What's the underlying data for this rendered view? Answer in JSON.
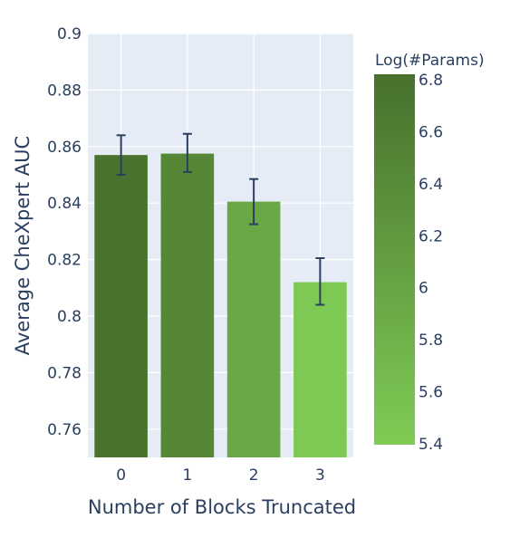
{
  "chart_data": {
    "type": "bar",
    "categories": [
      "0",
      "1",
      "2",
      "3"
    ],
    "values": [
      0.857,
      0.8575,
      0.8405,
      0.812
    ],
    "error_upper": [
      0.864,
      0.8645,
      0.8485,
      0.8205
    ],
    "error_lower": [
      0.85,
      0.851,
      0.8325,
      0.804
    ],
    "color_values": [
      6.75,
      6.45,
      5.95,
      5.45
    ],
    "xlabel": "Number of Blocks Truncated",
    "ylabel": "Average CheXpert AUC",
    "ylim": [
      0.75,
      0.9
    ],
    "y_ticks": [
      "0.9",
      "0.88",
      "0.86",
      "0.84",
      "0.82",
      "0.8",
      "0.78",
      "0.76"
    ],
    "x_ticks": [
      "0",
      "1",
      "2",
      "3"
    ],
    "grid": true,
    "colorbar": {
      "title": "Log(#Params)",
      "range": [
        5.4,
        6.8
      ],
      "ticks": [
        "6.8",
        "6.6",
        "6.4",
        "6.2",
        "6",
        "5.8",
        "5.6",
        "5.4"
      ],
      "color_low": "#7fcc55",
      "color_high": "#47702d"
    },
    "plot_background": "#e5ecf6",
    "error_bar_color": "#2a3f5f"
  }
}
